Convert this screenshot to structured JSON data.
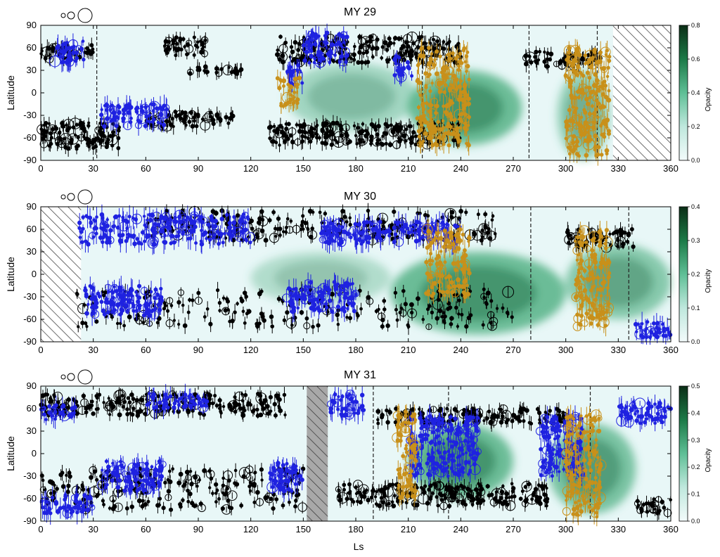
{
  "shared": {
    "xlabel": "Ls",
    "ylabel": "Latitude",
    "colorbar_label": "Opacity",
    "x_ticks": [
      "0",
      "30",
      "60",
      "90",
      "120",
      "150",
      "180",
      "210",
      "240",
      "270",
      "300",
      "330",
      "360"
    ],
    "y_ticks": [
      "90",
      "60",
      "30",
      "0",
      "-30",
      "-60",
      "-90"
    ],
    "xlim": [
      0,
      360
    ],
    "ylim": [
      -90,
      90
    ],
    "size_legend": "three open circles of increasing size (top-left of each panel)",
    "colors": {
      "black_points": "#000000",
      "blue_points": "#1f22e0",
      "orange_points": "#c8901a",
      "background": "#e8f7f7",
      "colormap_low": "#eefafa",
      "colormap_high": "#0b3d1e",
      "hatch_gray": "#a8a8a8"
    }
  },
  "chart_data": [
    {
      "type": "scatter",
      "title": "MY 29",
      "colorbar_ticks": [
        "0.8",
        "0.6",
        "0.4",
        "0.2",
        "0.0"
      ],
      "colorbar_range": [
        0,
        0.8
      ],
      "hatched_gaps_ls": [
        [
          327,
          360
        ]
      ],
      "dashed_markers_ls": [
        32,
        218,
        279,
        318
      ],
      "dust_regions": [
        {
          "ls": [
            210,
            275
          ],
          "lat": [
            -70,
            30
          ],
          "intensity": 0.45
        },
        {
          "ls": [
            140,
            215
          ],
          "lat": [
            -50,
            40
          ],
          "intensity": 0.25
        },
        {
          "ls": [
            295,
            325
          ],
          "lat": [
            -90,
            30
          ],
          "intensity": 0.3
        }
      ],
      "series": [
        {
          "color": "black",
          "clusters": [
            {
              "ls": [
                0,
                30
              ],
              "lat": [
                45,
                65
              ]
            },
            {
              "ls": [
                70,
                95
              ],
              "lat": [
                50,
                75
              ]
            },
            {
              "ls": [
                135,
                240
              ],
              "lat": [
                40,
                75
              ]
            },
            {
              "ls": [
                0,
                45
              ],
              "lat": [
                -75,
                -40
              ]
            },
            {
              "ls": [
                130,
                240
              ],
              "lat": [
                -70,
                -40
              ]
            },
            {
              "ls": [
                275,
                320
              ],
              "lat": [
                35,
                55
              ]
            },
            {
              "ls": [
                85,
                115
              ],
              "lat": [
                25,
                35
              ]
            },
            {
              "ls": [
                60,
                110
              ],
              "lat": [
                -45,
                -25
              ]
            }
          ]
        },
        {
          "color": "blue",
          "clusters": [
            {
              "ls": [
                8,
                25
              ],
              "lat": [
                40,
                70
              ]
            },
            {
              "ls": [
                33,
                72
              ],
              "lat": [
                -45,
                -15
              ]
            },
            {
              "ls": [
                150,
                175
              ],
              "lat": [
                40,
                80
              ]
            },
            {
              "ls": [
                202,
                212
              ],
              "lat": [
                20,
                50
              ]
            },
            {
              "ls": [
                140,
                150
              ],
              "lat": [
                10,
                40
              ]
            }
          ]
        },
        {
          "color": "orange",
          "clusters": [
            {
              "ls": [
                135,
                148
              ],
              "lat": [
                -20,
                20
              ]
            },
            {
              "ls": [
                215,
                245
              ],
              "lat": [
                -70,
                60
              ]
            },
            {
              "ls": [
                300,
                325
              ],
              "lat": [
                -85,
                60
              ]
            }
          ]
        }
      ]
    },
    {
      "type": "scatter",
      "title": "MY 30",
      "colorbar_ticks": [
        "0.4",
        "0.3",
        "0.2",
        "0.1",
        "0.0"
      ],
      "colorbar_range": [
        0,
        0.4
      ],
      "hatched_gaps_ls": [
        [
          0,
          23
        ]
      ],
      "dashed_markers_ls": [
        280,
        336
      ],
      "dust_regions": [
        {
          "ls": [
            200,
            300
          ],
          "lat": [
            -80,
            30
          ],
          "intensity": 0.45
        },
        {
          "ls": [
            300,
            360
          ],
          "lat": [
            -60,
            40
          ],
          "intensity": 0.35
        },
        {
          "ls": [
            120,
            200
          ],
          "lat": [
            -40,
            30
          ],
          "intensity": 0.2
        }
      ],
      "series": [
        {
          "color": "black",
          "clusters": [
            {
              "ls": [
                60,
                260
              ],
              "lat": [
                45,
                85
              ]
            },
            {
              "ls": [
                20,
                270
              ],
              "lat": [
                -70,
                -20
              ]
            },
            {
              "ls": [
                300,
                340
              ],
              "lat": [
                35,
                60
              ]
            }
          ]
        },
        {
          "color": "blue",
          "clusters": [
            {
              "ls": [
                22,
                120
              ],
              "lat": [
                40,
                80
              ]
            },
            {
              "ls": [
                160,
                240
              ],
              "lat": [
                40,
                70
              ]
            },
            {
              "ls": [
                25,
                70
              ],
              "lat": [
                -55,
                -15
              ]
            },
            {
              "ls": [
                140,
                180
              ],
              "lat": [
                -50,
                -10
              ]
            },
            {
              "ls": [
                340,
                360
              ],
              "lat": [
                -85,
                -60
              ]
            }
          ]
        },
        {
          "color": "orange",
          "clusters": [
            {
              "ls": [
                220,
                245
              ],
              "lat": [
                -30,
                60
              ]
            },
            {
              "ls": [
                305,
                325
              ],
              "lat": [
                -70,
                60
              ]
            }
          ]
        }
      ]
    },
    {
      "type": "scatter",
      "title": "MY 31",
      "colorbar_ticks": [
        "0.5",
        "0.4",
        "0.3",
        "0.2",
        "0.1",
        "0.0"
      ],
      "colorbar_range": [
        0,
        0.5
      ],
      "hatched_gaps_ls": [
        [
          152,
          164
        ]
      ],
      "dashed_markers_ls": [
        190,
        233,
        314
      ],
      "dust_regions": [
        {
          "ls": [
            210,
            270
          ],
          "lat": [
            -60,
            40
          ],
          "intensity": 0.45
        },
        {
          "ls": [
            290,
            340
          ],
          "lat": [
            -80,
            40
          ],
          "intensity": 0.4
        }
      ],
      "series": [
        {
          "color": "black",
          "clusters": [
            {
              "ls": [
                0,
                140
              ],
              "lat": [
                50,
                80
              ]
            },
            {
              "ls": [
                0,
                150
              ],
              "lat": [
                -75,
                -20
              ]
            },
            {
              "ls": [
                190,
                300
              ],
              "lat": [
                40,
                60
              ]
            },
            {
              "ls": [
                170,
                290
              ],
              "lat": [
                -70,
                -40
              ]
            },
            {
              "ls": [
                340,
                360
              ],
              "lat": [
                -80,
                -60
              ]
            }
          ]
        },
        {
          "color": "blue",
          "clusters": [
            {
              "ls": [
                0,
                20
              ],
              "lat": [
                45,
                65
              ]
            },
            {
              "ls": [
                60,
                95
              ],
              "lat": [
                60,
                80
              ]
            },
            {
              "ls": [
                165,
                185
              ],
              "lat": [
                50,
                80
              ]
            },
            {
              "ls": [
                0,
                30
              ],
              "lat": [
                -80,
                -55
              ]
            },
            {
              "ls": [
                35,
                70
              ],
              "lat": [
                -50,
                -10
              ]
            },
            {
              "ls": [
                130,
                150
              ],
              "lat": [
                -50,
                -10
              ]
            },
            {
              "ls": [
                210,
                250
              ],
              "lat": [
                -30,
                50
              ]
            },
            {
              "ls": [
                285,
                310
              ],
              "lat": [
                -30,
                50
              ]
            },
            {
              "ls": [
                330,
                360
              ],
              "lat": [
                40,
                70
              ]
            }
          ]
        },
        {
          "color": "orange",
          "clusters": [
            {
              "ls": [
                203,
                215
              ],
              "lat": [
                -60,
                60
              ]
            },
            {
              "ls": [
                300,
                320
              ],
              "lat": [
                -85,
                55
              ]
            }
          ]
        }
      ]
    }
  ]
}
